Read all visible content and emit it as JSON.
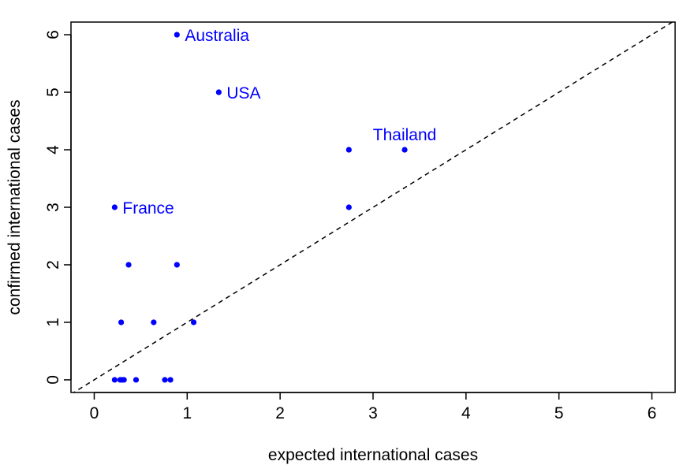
{
  "chart_data": {
    "type": "scatter",
    "title": "",
    "xlabel": "expected international cases",
    "ylabel": "confirmed international cases",
    "xlim": [
      -0.25,
      6.25
    ],
    "ylim": [
      -0.22,
      6.22
    ],
    "x_ticks": [
      0,
      1,
      2,
      3,
      4,
      5,
      6
    ],
    "y_ticks": [
      0,
      1,
      2,
      3,
      4,
      5,
      6
    ],
    "grid": false,
    "point_color": "#0000ff",
    "reference_line": {
      "style": "dashed",
      "slope": 1,
      "intercept": 0,
      "color": "#000000"
    },
    "series": [
      {
        "points": [
          {
            "x": 0.89,
            "y": 6,
            "label": "Australia"
          },
          {
            "x": 1.34,
            "y": 5,
            "label": "USA"
          },
          {
            "x": 3.34,
            "y": 4,
            "label": "Thailand"
          },
          {
            "x": 0.22,
            "y": 3,
            "label": "France"
          },
          {
            "x": 2.74,
            "y": 4
          },
          {
            "x": 2.74,
            "y": 3
          },
          {
            "x": 0.37,
            "y": 2
          },
          {
            "x": 0.89,
            "y": 2
          },
          {
            "x": 0.29,
            "y": 1
          },
          {
            "x": 0.64,
            "y": 1
          },
          {
            "x": 1.07,
            "y": 1
          },
          {
            "x": 0.22,
            "y": 0
          },
          {
            "x": 0.28,
            "y": 0
          },
          {
            "x": 0.3,
            "y": 0
          },
          {
            "x": 0.32,
            "y": 0
          },
          {
            "x": 0.45,
            "y": 0
          },
          {
            "x": 0.76,
            "y": 0
          },
          {
            "x": 0.82,
            "y": 0
          }
        ]
      }
    ]
  }
}
